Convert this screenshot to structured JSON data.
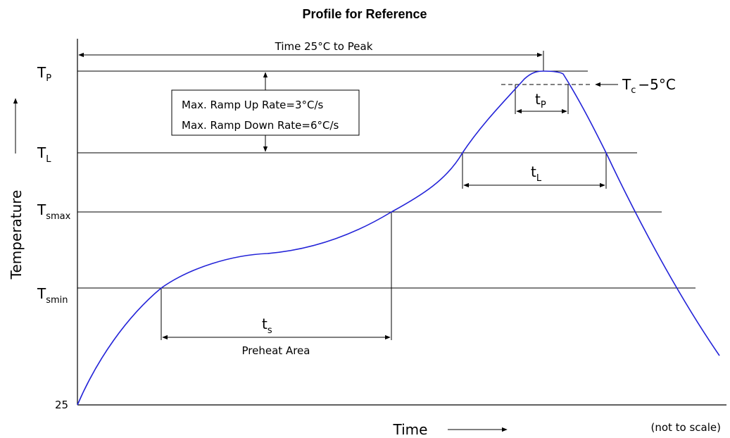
{
  "title": "Profile for Reference",
  "y_axis": {
    "label": "Temperature",
    "ticks": {
      "tp": {
        "main": "T",
        "sub": "P"
      },
      "tl": {
        "main": "T",
        "sub": "L"
      },
      "tsmax": {
        "main": "T",
        "sub": "smax"
      },
      "tsmin": {
        "main": "T",
        "sub": "smin"
      },
      "t25": "25"
    }
  },
  "x_axis": {
    "label": "Time",
    "note": "(not to scale)"
  },
  "annotations": {
    "time_to_peak": "Time 25°C to Peak",
    "ramp_up": "Max. Ramp Up Rate=3°C/s",
    "ramp_down": "Max. Ramp Down Rate=6°C/s",
    "tc_main": "T",
    "tc_sub": "c",
    "tc_suffix": "−5°C",
    "tp_main": "t",
    "tp_sub": "P",
    "tl_main": "t",
    "tl_sub": "L",
    "ts_main": "t",
    "ts_sub": "s",
    "preheat": "Preheat Area"
  },
  "colors": {
    "curve": "#2323d8",
    "lines": "#000000"
  }
}
